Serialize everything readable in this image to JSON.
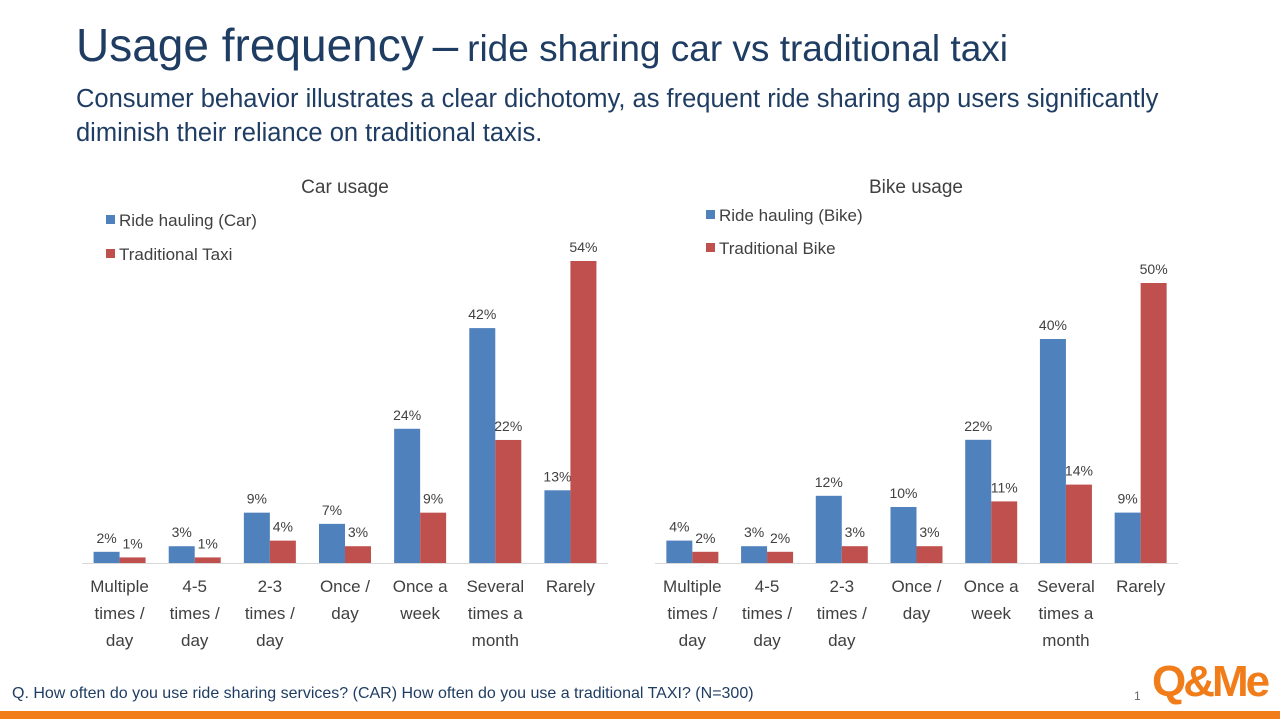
{
  "slide": {
    "title_main": "Usage frequency",
    "title_sep": "–",
    "title_sub": "ride sharing car vs traditional taxi",
    "subtitle": "Consumer behavior illustrates a clear dichotomy, as frequent ride sharing app users significantly diminish their reliance on traditional taxis.",
    "footnote": "Q. How often do you use ride sharing services? (CAR) How often do you use a traditional TAXI? (N=300)",
    "page_number": "1",
    "logo_text": "Q&Me",
    "colors": {
      "title": "#1f3d63",
      "accent": "#f07d1a"
    }
  },
  "chart_data": [
    {
      "type": "bar",
      "title": "Car usage",
      "categories": [
        [
          "Multiple",
          "times /",
          "day"
        ],
        [
          "4-5",
          "times /",
          "day"
        ],
        [
          "2-3",
          "times /",
          "day"
        ],
        [
          "Once /",
          "day"
        ],
        [
          "Once a",
          "week"
        ],
        [
          "Several",
          "times a",
          "month"
        ],
        [
          "Rarely"
        ]
      ],
      "series": [
        {
          "name": "Ride hauling (Car)",
          "color": "#4f81bd",
          "values": [
            2,
            3,
            9,
            7,
            24,
            42,
            13
          ],
          "labels": [
            "2%",
            "3%",
            "9%",
            "7%",
            "24%",
            "42%",
            "13%"
          ]
        },
        {
          "name": "Traditional Taxi",
          "color": "#c0504d",
          "values": [
            1,
            1,
            4,
            3,
            9,
            22,
            54
          ],
          "labels": [
            "1%",
            "1%",
            "4%",
            "3%",
            "9%",
            "22%",
            "54%"
          ]
        }
      ],
      "legend_position": "top-left",
      "grid": false,
      "ylim": [
        0,
        54
      ]
    },
    {
      "type": "bar",
      "title": "Bike usage",
      "categories": [
        [
          "Multiple",
          "times /",
          "day"
        ],
        [
          "4-5",
          "times /",
          "day"
        ],
        [
          "2-3",
          "times /",
          "day"
        ],
        [
          "Once /",
          "day"
        ],
        [
          "Once a",
          "week"
        ],
        [
          "Several",
          "times a",
          "month"
        ],
        [
          "Rarely"
        ]
      ],
      "series": [
        {
          "name": "Ride hauling (Bike)",
          "color": "#4f81bd",
          "values": [
            4,
            3,
            12,
            10,
            22,
            40,
            9
          ],
          "labels": [
            "4%",
            "3%",
            "12%",
            "10%",
            "22%",
            "40%",
            "9%"
          ]
        },
        {
          "name": "Traditional Bike",
          "color": "#c0504d",
          "values": [
            2,
            2,
            3,
            3,
            11,
            14,
            50
          ],
          "labels": [
            "2%",
            "2%",
            "3%",
            "3%",
            "11%",
            "14%",
            "50%"
          ]
        }
      ],
      "legend_position": "top-left",
      "grid": false,
      "ylim": [
        0,
        50
      ]
    }
  ]
}
